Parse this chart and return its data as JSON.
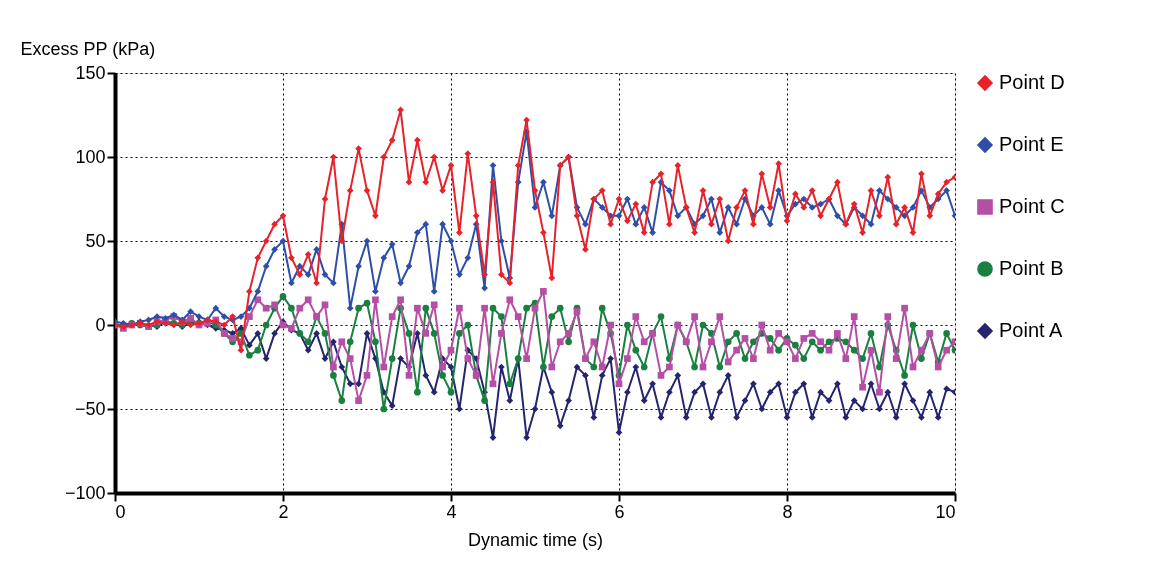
{
  "chart_data": {
    "type": "line",
    "xlabel": "Dynamic time (s)",
    "ylabel": "Excess PP (kPa)",
    "x": [
      0,
      0.1,
      0.2,
      0.3,
      0.4,
      0.5,
      0.6,
      0.7,
      0.8,
      0.9,
      1,
      1.1,
      1.2,
      1.3,
      1.4,
      1.5,
      1.6,
      1.7,
      1.8,
      1.9,
      2,
      2.1,
      2.2,
      2.3,
      2.4,
      2.5,
      2.6,
      2.7,
      2.8,
      2.9,
      3,
      3.1,
      3.2,
      3.3,
      3.4,
      3.5,
      3.6,
      3.7,
      3.8,
      3.9,
      4,
      4.1,
      4.2,
      4.3,
      4.4,
      4.5,
      4.6,
      4.7,
      4.8,
      4.9,
      5,
      5.1,
      5.2,
      5.3,
      5.4,
      5.5,
      5.6,
      5.7,
      5.8,
      5.9,
      6,
      6.1,
      6.2,
      6.3,
      6.4,
      6.5,
      6.6,
      6.7,
      6.8,
      6.9,
      7,
      7.1,
      7.2,
      7.3,
      7.4,
      7.5,
      7.6,
      7.7,
      7.8,
      7.9,
      8,
      8.1,
      8.2,
      8.3,
      8.4,
      8.5,
      8.6,
      8.7,
      8.8,
      8.9,
      9,
      9.1,
      9.2,
      9.3,
      9.4,
      9.5,
      9.6,
      9.7,
      9.8,
      9.9,
      10
    ],
    "series": [
      {
        "name": "Point D",
        "color": "#e8222a",
        "marker": "diamond",
        "values": [
          0,
          -1,
          0,
          1,
          0,
          2,
          1,
          0,
          2,
          0,
          1,
          3,
          2,
          0,
          5,
          -15,
          20,
          40,
          50,
          60,
          65,
          40,
          30,
          42,
          25,
          75,
          100,
          50,
          80,
          105,
          80,
          65,
          100,
          110,
          128,
          85,
          110,
          85,
          100,
          80,
          95,
          55,
          102,
          65,
          30,
          85,
          30,
          25,
          95,
          122,
          80,
          55,
          28,
          95,
          100,
          65,
          45,
          75,
          80,
          60,
          75,
          62,
          72,
          55,
          85,
          90,
          60,
          95,
          70,
          55,
          80,
          60,
          75,
          50,
          70,
          80,
          60,
          90,
          70,
          96,
          62,
          78,
          70,
          80,
          65,
          75,
          85,
          60,
          72,
          55,
          80,
          65,
          88,
          60,
          70,
          55,
          90,
          65,
          78,
          85,
          88
        ]
      },
      {
        "name": "Point E",
        "color": "#2e4fa8",
        "marker": "diamond",
        "values": [
          2,
          1,
          0,
          2,
          3,
          5,
          4,
          6,
          3,
          8,
          5,
          3,
          10,
          5,
          3,
          5,
          10,
          20,
          35,
          45,
          50,
          25,
          35,
          30,
          45,
          30,
          25,
          60,
          10,
          35,
          50,
          20,
          40,
          48,
          25,
          35,
          55,
          60,
          20,
          60,
          50,
          30,
          40,
          60,
          22,
          95,
          50,
          28,
          85,
          115,
          70,
          85,
          65,
          95,
          100,
          70,
          60,
          75,
          70,
          65,
          65,
          75,
          60,
          70,
          55,
          85,
          80,
          65,
          70,
          60,
          65,
          75,
          55,
          70,
          60,
          75,
          65,
          70,
          60,
          80,
          65,
          72,
          75,
          70,
          72,
          75,
          65,
          60,
          70,
          65,
          60,
          80,
          75,
          70,
          65,
          70,
          80,
          70,
          75,
          80,
          65
        ]
      },
      {
        "name": "Point C",
        "color": "#b54fa6",
        "marker": "square",
        "values": [
          0,
          -2,
          0,
          1,
          -1,
          2,
          3,
          5,
          2,
          4,
          0,
          1,
          3,
          -5,
          -8,
          -10,
          5,
          15,
          10,
          12,
          0,
          -2,
          10,
          15,
          5,
          12,
          -25,
          -10,
          -20,
          -45,
          -30,
          15,
          -25,
          5,
          15,
          -30,
          10,
          -5,
          12,
          -25,
          -15,
          10,
          -20,
          -30,
          10,
          -35,
          -5,
          15,
          5,
          -20,
          10,
          20,
          -25,
          -10,
          -5,
          8,
          -20,
          -10,
          -25,
          0,
          -35,
          -20,
          5,
          -10,
          -5,
          -30,
          -25,
          0,
          -10,
          5,
          -25,
          -10,
          5,
          -22,
          -15,
          -8,
          -20,
          0,
          -15,
          -5,
          -10,
          -20,
          -8,
          -5,
          -10,
          -15,
          -5,
          -20,
          5,
          -37,
          -15,
          -40,
          5,
          -20,
          10,
          -25,
          -15,
          -5,
          -25,
          -15,
          -10
        ]
      },
      {
        "name": "Point B",
        "color": "#1a8040",
        "marker": "circle",
        "values": [
          0,
          0,
          1,
          0,
          -1,
          0,
          2,
          1,
          0,
          3,
          1,
          2,
          0,
          -5,
          -10,
          -5,
          -18,
          -15,
          0,
          10,
          17,
          10,
          -5,
          -10,
          5,
          -5,
          -30,
          -45,
          -10,
          10,
          13,
          -10,
          -50,
          -20,
          10,
          -5,
          -40,
          10,
          -5,
          -30,
          -40,
          -5,
          0,
          -30,
          -45,
          10,
          5,
          -35,
          -20,
          10,
          13,
          -25,
          5,
          10,
          -10,
          10,
          -20,
          -25,
          10,
          -5,
          -30,
          0,
          -15,
          -25,
          -5,
          5,
          -20,
          0,
          -10,
          -25,
          0,
          -5,
          -25,
          -10,
          -5,
          -20,
          -10,
          -5,
          -8,
          -15,
          -8,
          -12,
          -20,
          -10,
          -15,
          -10,
          -8,
          -10,
          -15,
          -20,
          -5,
          -25,
          0,
          -15,
          -30,
          0,
          -20,
          -5,
          -22,
          -5,
          -15
        ]
      },
      {
        "name": "Point A",
        "color": "#25256e",
        "marker": "diamond",
        "values": [
          0,
          -1,
          1,
          0,
          0,
          -1,
          2,
          1,
          -1,
          1,
          2,
          0,
          -2,
          -3,
          -5,
          -2,
          -12,
          -5,
          -20,
          -5,
          2,
          -3,
          -5,
          -15,
          -5,
          -20,
          -10,
          -25,
          -35,
          -35,
          -5,
          -20,
          -40,
          -48,
          -20,
          -25,
          -5,
          -30,
          -40,
          -20,
          -25,
          -50,
          -15,
          -20,
          -40,
          -67,
          -25,
          -45,
          -20,
          -67,
          -50,
          -25,
          -40,
          -60,
          -45,
          -25,
          -30,
          -55,
          -30,
          -20,
          -64,
          -40,
          -25,
          -45,
          -35,
          -55,
          -40,
          -30,
          -55,
          -40,
          -35,
          -55,
          -40,
          -30,
          -55,
          -45,
          -35,
          -50,
          -40,
          -35,
          -55,
          -40,
          -35,
          -55,
          -40,
          -45,
          -35,
          -55,
          -45,
          -50,
          -35,
          -50,
          -40,
          -55,
          -35,
          -45,
          -55,
          -40,
          -55,
          -38,
          -40
        ]
      }
    ],
    "xlim": [
      0,
      10
    ],
    "xticks": [
      0,
      2,
      4,
      6,
      8,
      10
    ],
    "ylim": [
      -100,
      150
    ],
    "yticks": [
      -100,
      -50,
      0,
      50,
      100,
      150
    ],
    "grid": true,
    "legend": "right",
    "line_style": "solid"
  }
}
